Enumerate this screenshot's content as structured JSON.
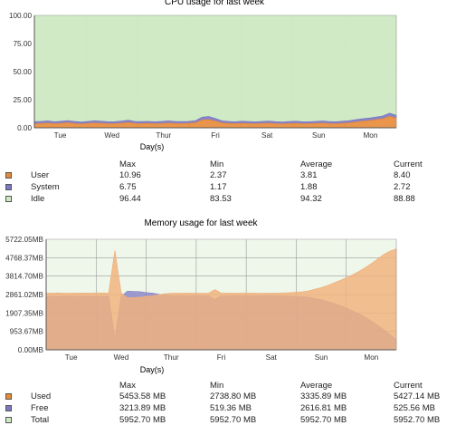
{
  "chart_data": [
    {
      "type": "area",
      "title": "CPU usage for last week",
      "xlabel": "Day(s)",
      "x_ticks": [
        "Tue",
        "Wed",
        "Thur",
        "Fri",
        "Sat",
        "Sun",
        "Mon"
      ],
      "y_ticks": [
        "100.00",
        "75.00",
        "50.00",
        "25.00",
        "0.00"
      ],
      "ylim": [
        0,
        100
      ],
      "grid": true,
      "series": [
        {
          "name": "User",
          "color": "#e8893a",
          "values": [
            3.5,
            3.8,
            4.1,
            3.6,
            3.9,
            4.5,
            3.7,
            3.4,
            3.8,
            4.2,
            3.9,
            3.5,
            3.7,
            4.0,
            4.6,
            3.8,
            3.6,
            3.9,
            3.5,
            3.7,
            4.1,
            3.8,
            3.6,
            3.9,
            4.4,
            6.8,
            7.2,
            5.9,
            4.2,
            3.8,
            3.6,
            3.9,
            3.7,
            3.5,
            3.8,
            4.0,
            3.6,
            3.4,
            3.7,
            3.9,
            3.5,
            3.6,
            3.8,
            4.1,
            3.7,
            3.6,
            3.9,
            4.3,
            5.1,
            5.8,
            6.4,
            7.2,
            8.0,
            10.2,
            8.4
          ]
        },
        {
          "name": "System",
          "color": "#7b78c4",
          "values": [
            1.9,
            1.8,
            2.0,
            1.7,
            1.9,
            1.8,
            1.9,
            1.7,
            1.8,
            2.0,
            1.9,
            1.8,
            1.7,
            1.9,
            2.1,
            1.8,
            1.9,
            1.7,
            1.8,
            1.9,
            2.0,
            1.8,
            1.9,
            1.7,
            1.8,
            2.6,
            2.9,
            2.4,
            1.9,
            1.8,
            1.7,
            1.9,
            1.8,
            1.7,
            1.8,
            1.9,
            1.8,
            1.7,
            1.8,
            1.9,
            1.8,
            1.7,
            1.8,
            1.9,
            1.8,
            1.7,
            1.9,
            2.0,
            2.1,
            2.2,
            2.3,
            2.4,
            2.5,
            2.8,
            2.7
          ]
        },
        {
          "name": "Idle",
          "color": "#cfe9c4",
          "values": [
            94.5,
            94.3,
            93.8,
            94.6,
            94.2,
            93.5,
            94.4,
            94.8,
            94.3,
            93.8,
            94.1,
            94.6,
            94.5,
            94.0,
            93.2,
            94.3,
            94.6,
            94.3,
            94.8,
            94.4,
            93.9,
            94.3,
            94.6,
            94.3,
            93.8,
            90.5,
            89.9,
            91.7,
            93.9,
            94.4,
            94.7,
            94.2,
            94.5,
            94.8,
            94.4,
            94.1,
            94.6,
            94.9,
            94.5,
            94.2,
            94.7,
            94.7,
            94.4,
            94.0,
            94.5,
            94.7,
            94.2,
            93.7,
            92.8,
            92.0,
            91.3,
            90.4,
            89.5,
            87.0,
            88.9
          ]
        }
      ],
      "stats_headers": [
        "Max",
        "Min",
        "Average",
        "Current"
      ],
      "stats": [
        {
          "name": "User",
          "color": "#e8893a",
          "values": [
            "10.96",
            "2.37",
            "3.81",
            "8.40"
          ]
        },
        {
          "name": "System",
          "color": "#7b78c4",
          "values": [
            "6.75",
            "1.17",
            "1.88",
            "2.72"
          ]
        },
        {
          "name": "Idle",
          "color": "#cfe9c4",
          "values": [
            "96.44",
            "83.53",
            "94.32",
            "88.88"
          ]
        }
      ]
    },
    {
      "type": "area",
      "title": "Memory usage for last week",
      "xlabel": "Day(s)",
      "x_ticks": [
        "Tue",
        "Wed",
        "Thur",
        "Fri",
        "Sat",
        "Sun",
        "Mon"
      ],
      "y_ticks": [
        "5722.05MB",
        "4768.37MB",
        "3814.70MB",
        "2861.02MB",
        "1907.35MB",
        "953.67MB",
        "0.00MB"
      ],
      "ylim": [
        0,
        5952.7
      ],
      "grid": true,
      "series": [
        {
          "name": "Free",
          "color": "#8a86c8",
          "values": [
            2880,
            2880,
            2870,
            2885,
            2880,
            2880,
            2875,
            2880,
            2870,
            2870,
            2880,
            600,
            2880,
            3150,
            3140,
            3130,
            3080,
            3050,
            2990,
            2930,
            2910,
            2905,
            2900,
            2900,
            2910,
            2905,
            2900,
            2710,
            2900,
            2900,
            2905,
            2900,
            2900,
            2900,
            2905,
            2905,
            2900,
            2900,
            2890,
            2880,
            2870,
            2860,
            2830,
            2760,
            2690,
            2600,
            2500,
            2380,
            2250,
            2100,
            1940,
            1750,
            1550,
            1320,
            1080,
            820,
            520
          ]
        },
        {
          "name": "Used",
          "color": "#f1b17d",
          "values": [
            3050,
            3050,
            3060,
            3045,
            3050,
            3050,
            3055,
            3050,
            3060,
            3060,
            3050,
            5340,
            3050,
            2800,
            2810,
            2820,
            2870,
            2900,
            2960,
            3020,
            3040,
            3045,
            3050,
            3050,
            3040,
            3045,
            3050,
            3240,
            3050,
            3050,
            3045,
            3050,
            3050,
            3050,
            3045,
            3045,
            3050,
            3050,
            3060,
            3075,
            3095,
            3120,
            3170,
            3260,
            3350,
            3460,
            3590,
            3730,
            3880,
            4040,
            4210,
            4420,
            4640,
            4880,
            5130,
            5310,
            5430
          ]
        }
      ],
      "stats_headers": [
        "Max",
        "Min",
        "Average",
        "Current"
      ],
      "stats": [
        {
          "name": "Used",
          "color": "#e8893a",
          "values": [
            "5453.58 MB",
            "2738.80 MB",
            "3335.89 MB",
            "5427.14 MB"
          ]
        },
        {
          "name": "Free",
          "color": "#7b78c4",
          "values": [
            "3213.89 MB",
            "519.36 MB",
            "2616.81 MB",
            "525.56 MB"
          ]
        },
        {
          "name": "Total",
          "color": "#cfe9c4",
          "values": [
            "5952.70 MB",
            "5952.70 MB",
            "5952.70 MB",
            "5952.70 MB"
          ]
        }
      ]
    }
  ]
}
